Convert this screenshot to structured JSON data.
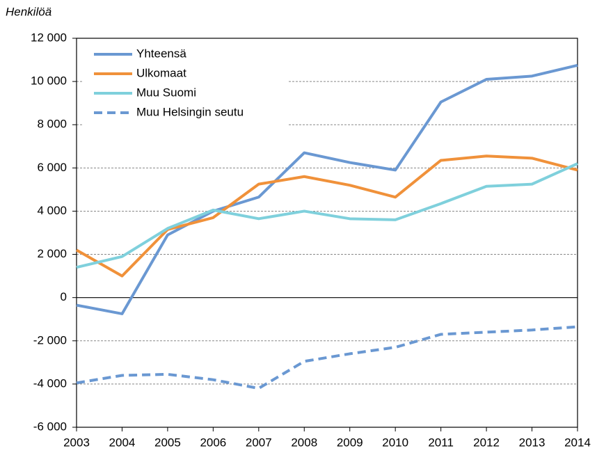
{
  "chart_data": {
    "type": "line",
    "y_label": "Henkilöä",
    "x": [
      2003,
      2004,
      2005,
      2006,
      2007,
      2008,
      2009,
      2010,
      2011,
      2012,
      2013,
      2014
    ],
    "xlim": [
      2003,
      2014
    ],
    "xticks": [
      2003,
      2004,
      2005,
      2006,
      2007,
      2008,
      2009,
      2010,
      2011,
      2012,
      2013,
      2014
    ],
    "ylim": [
      -6000,
      12000
    ],
    "yticks": [
      {
        "value": -6000,
        "label": "-6 000"
      },
      {
        "value": -4000,
        "label": "-4 000"
      },
      {
        "value": -2000,
        "label": "-2 000"
      },
      0,
      {
        "value": 2000,
        "label": "2 000"
      },
      {
        "value": 4000,
        "label": "4 000"
      },
      {
        "value": 6000,
        "label": "6 000"
      },
      {
        "value": 8000,
        "label": "8 000"
      },
      {
        "value": 10000,
        "label": "10 000"
      },
      {
        "value": 12000,
        "label": "12 000"
      }
    ],
    "grid": true,
    "legend": "upper left",
    "series": [
      {
        "name": "Yhteensä",
        "color": "#6a98d2",
        "dashed": false,
        "values": [
          -350,
          -750,
          2900,
          4000,
          4650,
          6700,
          6250,
          5900,
          9050,
          10100,
          10250,
          10750
        ]
      },
      {
        "name": "Ulkomaat",
        "color": "#f0913a",
        "dashed": false,
        "values": [
          2200,
          1000,
          3150,
          3700,
          5250,
          5600,
          5200,
          4650,
          6350,
          6550,
          6450,
          5900
        ]
      },
      {
        "name": "Muu Suomi",
        "color": "#7fd0dc",
        "dashed": false,
        "values": [
          1400,
          1900,
          3200,
          4050,
          3650,
          4000,
          3650,
          3600,
          4350,
          5150,
          5250,
          6200
        ]
      },
      {
        "name": "Muu Helsingin seutu",
        "color": "#6a98d2",
        "dashed": true,
        "values": [
          -3950,
          -3600,
          -3550,
          -3800,
          -4200,
          -2950,
          -2600,
          -2300,
          -1700,
          -1600,
          -1500,
          -1350
        ]
      }
    ]
  }
}
